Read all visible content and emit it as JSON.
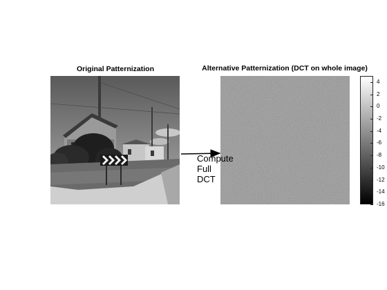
{
  "figure": {
    "left_title": "Original Patternization",
    "right_title": "Alternative Patternization (DCT on whole image)",
    "annotation": "Compute\nFull\nDCT",
    "colorbar": {
      "ticks": [
        "4",
        "2",
        "0",
        "-2",
        "-4",
        "-6",
        "-8",
        "-10",
        "-12",
        "-14",
        "-16"
      ],
      "min": -16,
      "max": 5,
      "colormap": "gray"
    }
  },
  "colors": {
    "background": "#ffffff",
    "arrow": "#000000"
  }
}
